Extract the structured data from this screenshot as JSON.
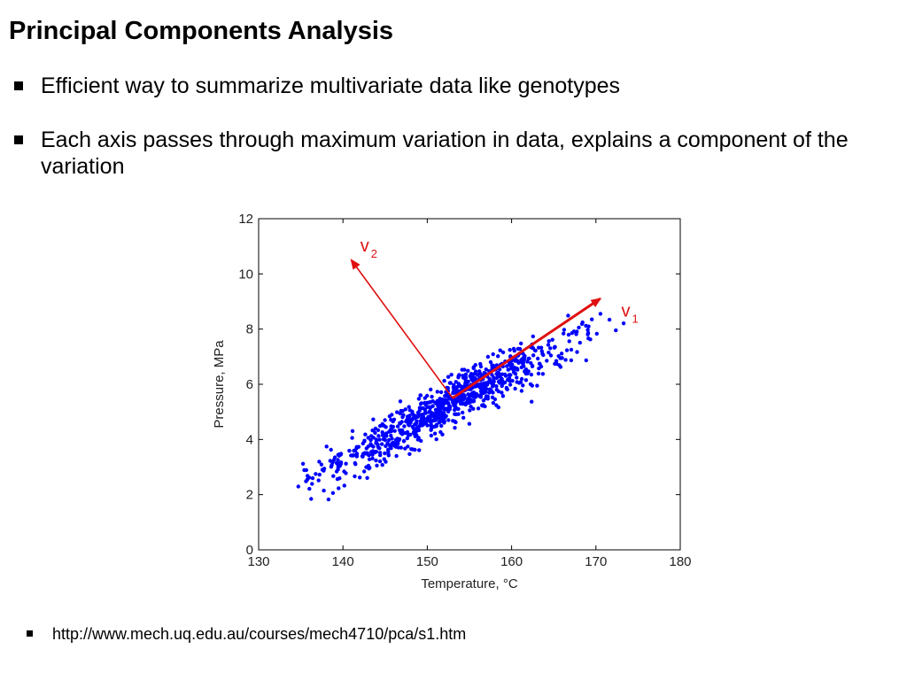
{
  "slide": {
    "title": "Principal Components Analysis",
    "bullets": [
      "Efficient way to summarize multivariate data like genotypes",
      "Each axis passes through maximum variation in data, explains a component of the variation"
    ],
    "footnote": "http://www.mech.uq.edu.au/courses/mech4710/pca/s1.htm"
  },
  "chart_data": {
    "type": "scatter",
    "title": "",
    "xlabel": "Temperature, °C",
    "ylabel": "Pressure, MPa",
    "xlim": [
      130,
      180
    ],
    "ylim": [
      0,
      12
    ],
    "xticks": [
      "130",
      "140",
      "150",
      "160",
      "170",
      "180"
    ],
    "yticks": [
      "0",
      "2",
      "4",
      "6",
      "8",
      "10",
      "12"
    ],
    "grid": false,
    "point_color": "#0000ff",
    "vector_color": "#e01010",
    "approx_trend": {
      "slope": 0.165,
      "x_mean": 152.5,
      "y_mean": 5.25,
      "n_points": 900
    },
    "vectors": [
      {
        "label": "v",
        "subscript": "1",
        "from": [
          153,
          5.5
        ],
        "to": [
          170.5,
          9.1
        ]
      },
      {
        "label": "v",
        "subscript": "2",
        "from": [
          153,
          5.5
        ],
        "to": [
          141,
          10.5
        ]
      }
    ]
  }
}
